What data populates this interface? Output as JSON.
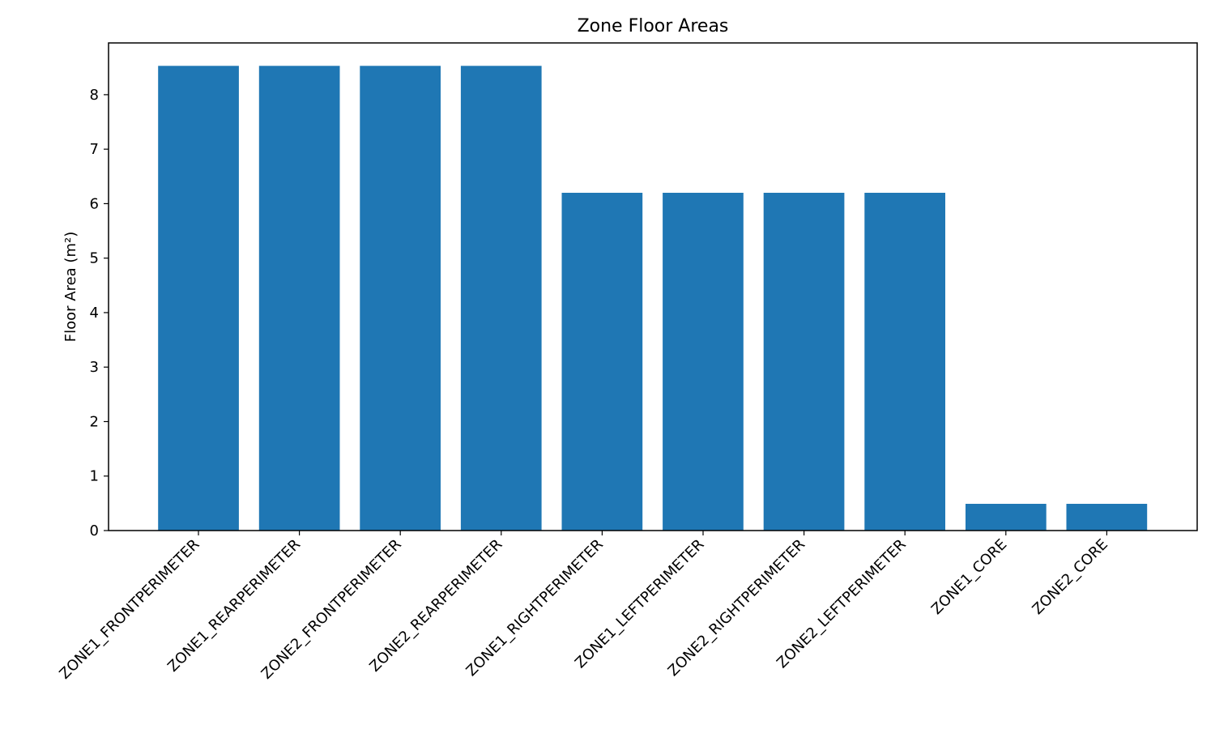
{
  "chart_data": {
    "type": "bar",
    "title": "Zone Floor Areas",
    "xlabel": "",
    "ylabel": "Floor Area (m²)",
    "categories": [
      "ZONE1_FRONTPERIMETER",
      "ZONE1_REARPERIMETER",
      "ZONE2_FRONTPERIMETER",
      "ZONE2_REARPERIMETER",
      "ZONE1_RIGHTPERIMETER",
      "ZONE1_LEFTPERIMETER",
      "ZONE2_RIGHTPERIMETER",
      "ZONE2_LEFTPERIMETER",
      "ZONE1_CORE",
      "ZONE2_CORE"
    ],
    "values": [
      8.53,
      8.53,
      8.53,
      8.53,
      6.2,
      6.2,
      6.2,
      6.2,
      0.49,
      0.49
    ],
    "ylim": [
      0,
      8.95
    ],
    "yticks": [
      0,
      1,
      2,
      3,
      4,
      5,
      6,
      7,
      8
    ],
    "bar_color": "#1f77b4",
    "grid": false,
    "legend": "none"
  }
}
